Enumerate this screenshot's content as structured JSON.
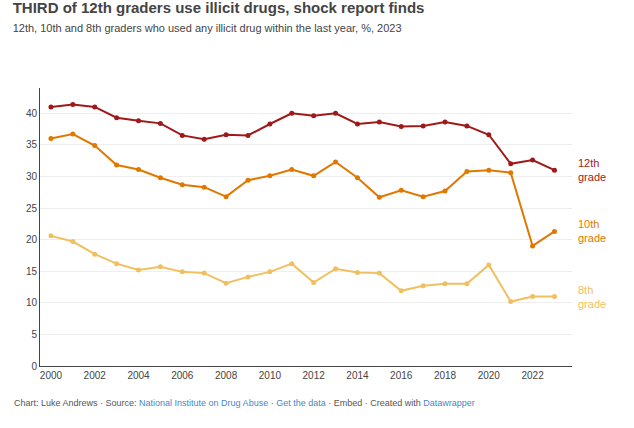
{
  "chart_data": {
    "type": "line",
    "title": "THIRD of 12th graders use illicit drugs, shock report finds",
    "subtitle": "12th, 10th and 8th graders who used any illicit drug within the last year, %, 2023",
    "x": [
      2000,
      2001,
      2002,
      2003,
      2004,
      2005,
      2006,
      2007,
      2008,
      2009,
      2010,
      2011,
      2012,
      2013,
      2014,
      2015,
      2016,
      2017,
      2018,
      2019,
      2020,
      2021,
      2022,
      2023
    ],
    "series": [
      {
        "name": "12th\ngrade",
        "color": "#9e1a1a",
        "values": [
          41.0,
          41.4,
          41.0,
          39.3,
          38.8,
          38.4,
          36.5,
          35.9,
          36.6,
          36.5,
          38.3,
          40.0,
          39.6,
          40.0,
          38.3,
          38.6,
          37.9,
          38.0,
          38.6,
          38.0,
          36.6,
          32.0,
          32.6,
          31.0
        ]
      },
      {
        "name": "10th\ngrade",
        "color": "#e07800",
        "values": [
          36.0,
          36.7,
          34.9,
          31.8,
          31.1,
          29.8,
          28.7,
          28.3,
          26.8,
          29.4,
          30.1,
          31.1,
          30.1,
          32.3,
          29.8,
          26.7,
          27.8,
          26.8,
          27.7,
          30.8,
          31.0,
          30.6,
          19.0,
          21.3
        ]
      },
      {
        "name": "8th\ngrade",
        "color": "#f0c060",
        "values": [
          20.6,
          19.7,
          17.7,
          16.2,
          15.2,
          15.7,
          14.9,
          14.7,
          13.1,
          14.1,
          14.9,
          16.2,
          13.2,
          15.4,
          14.8,
          14.7,
          11.9,
          12.7,
          13.0,
          13.0,
          16.0,
          10.2,
          11.0,
          11.0
        ]
      }
    ],
    "xlim": [
      1999.5,
      2023.8
    ],
    "xticks": [
      2000,
      2002,
      2004,
      2006,
      2008,
      2010,
      2012,
      2014,
      2016,
      2018,
      2020,
      2022
    ],
    "ylim": [
      0,
      44
    ],
    "yticks": [
      0,
      5,
      10,
      15,
      20,
      25,
      30,
      35,
      40
    ],
    "grid": true,
    "marker": "circle",
    "footer": [
      {
        "text": "Chart: Luke Andrews · Source: ",
        "color": "#555555"
      },
      {
        "text": "National Institute on Drug Abuse",
        "color": "#4a86c8"
      },
      {
        "text": " · ",
        "color": "#555555"
      },
      {
        "text": "Get the data",
        "color": "#4a86c8"
      },
      {
        "text": " · Embed · Created with ",
        "color": "#555555"
      },
      {
        "text": "Datawrapper",
        "color": "#4a86c8"
      }
    ]
  }
}
